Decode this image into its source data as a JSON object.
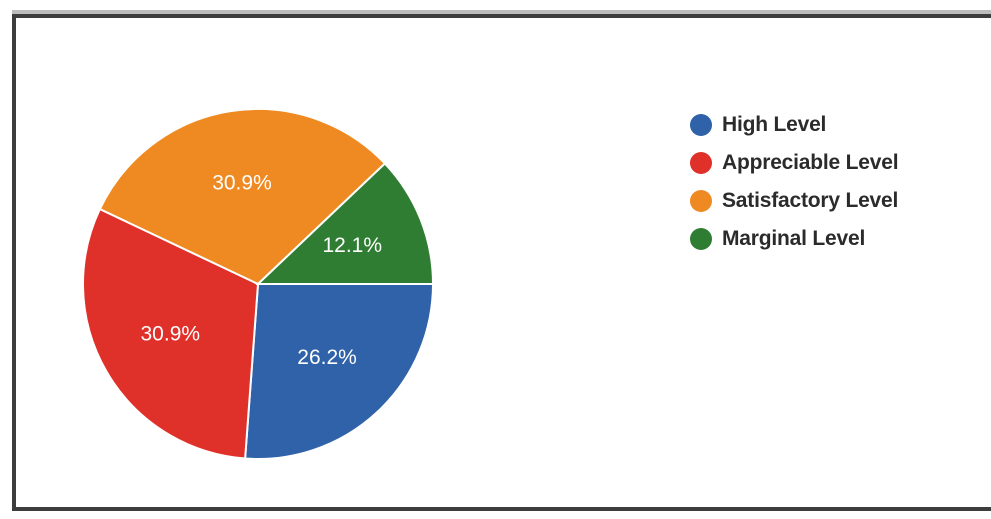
{
  "chart_data": {
    "type": "pie",
    "categories": [
      "High Level",
      "Appreciable Level",
      "Satisfactory Level",
      "Marginal Level"
    ],
    "values": [
      26.2,
      30.9,
      30.9,
      12.1
    ],
    "data_labels": [
      "26.2%",
      "30.9%",
      "30.9%",
      "12.1%"
    ],
    "colors": [
      "#2f62a8",
      "#e0302a",
      "#ef8a22",
      "#2f7d32"
    ],
    "start_angle_deg": 90,
    "direction": "clockwise",
    "legend_position": "right"
  },
  "legend": {
    "items": [
      {
        "label": "High Level",
        "color": "#2f62a8"
      },
      {
        "label": "Appreciable Level",
        "color": "#e0302a"
      },
      {
        "label": "Satisfactory Level",
        "color": "#ef8a22"
      },
      {
        "label": "Marginal Level",
        "color": "#2f7d32"
      }
    ]
  }
}
